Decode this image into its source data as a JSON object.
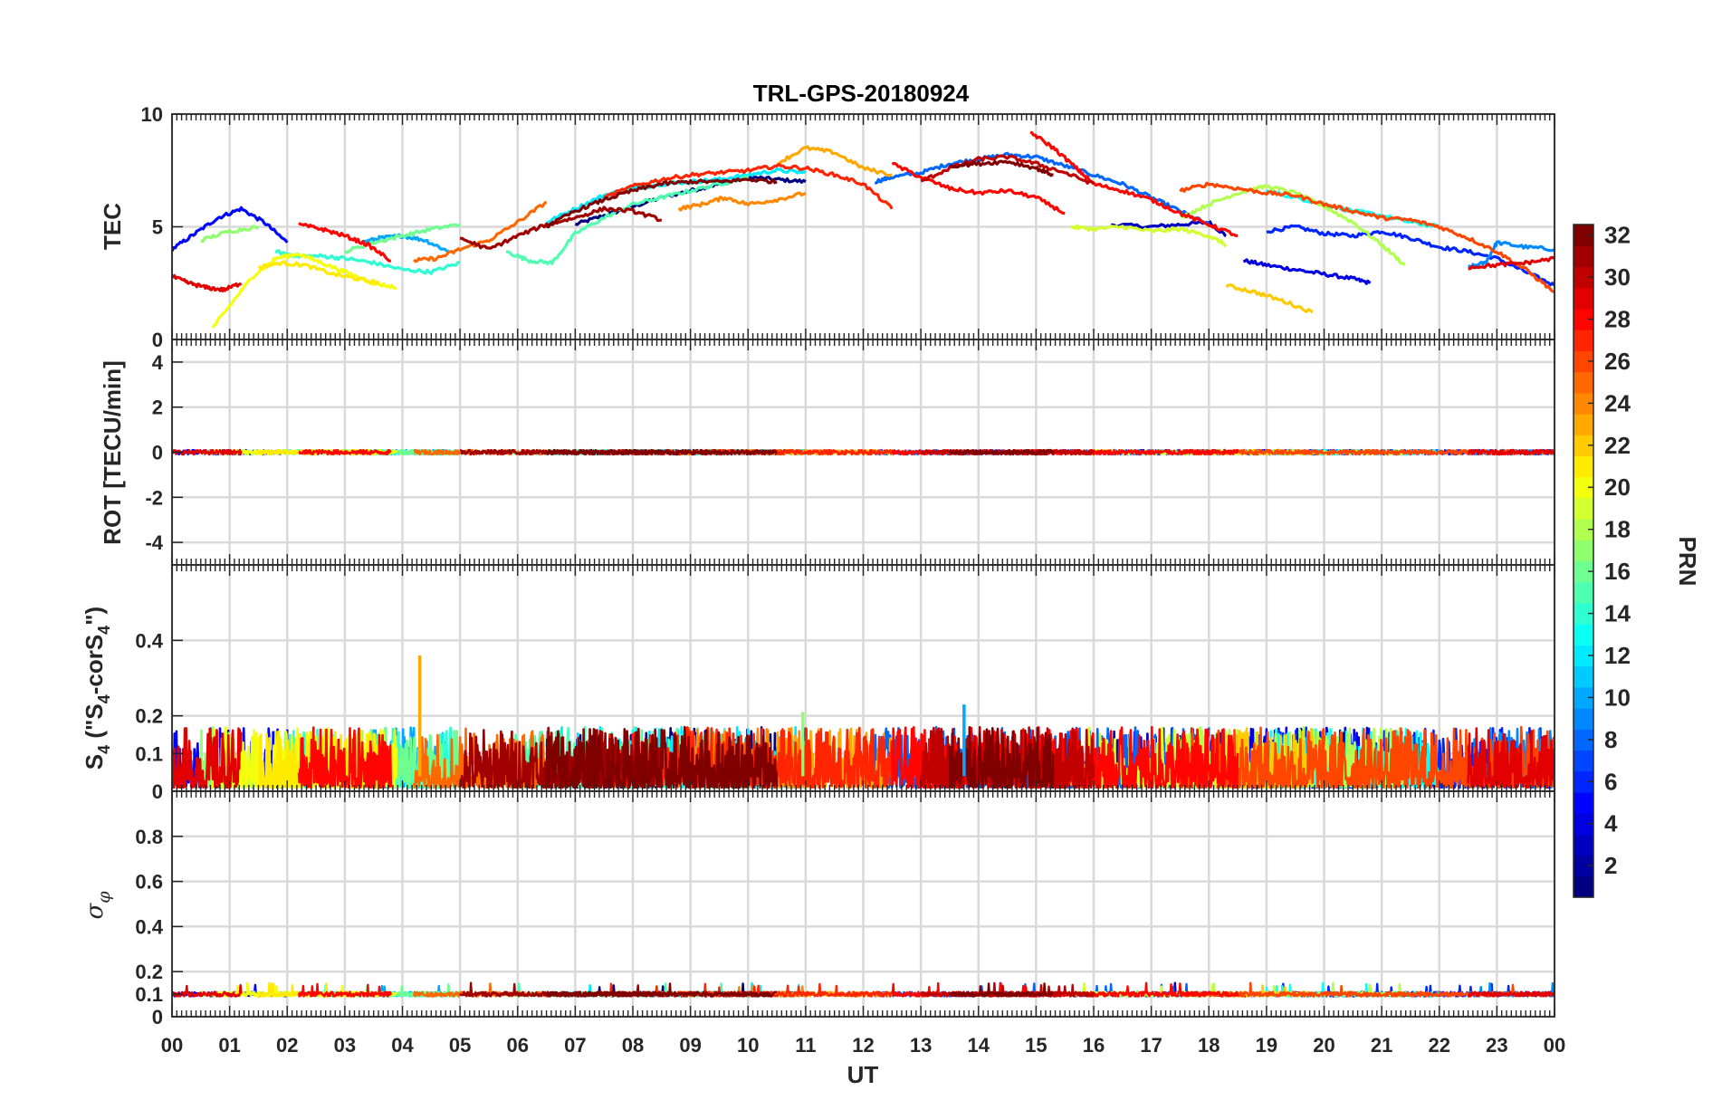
{
  "chart_data": {
    "type": "line",
    "title": "TRL-GPS-20180924",
    "xlabel": "UT",
    "x_range_hours": [
      0,
      24
    ],
    "x_tick_labels": [
      "00",
      "01",
      "02",
      "03",
      "04",
      "05",
      "06",
      "07",
      "08",
      "09",
      "10",
      "11",
      "12",
      "13",
      "14",
      "15",
      "16",
      "17",
      "18",
      "19",
      "20",
      "21",
      "22",
      "23",
      "00"
    ],
    "grid": true,
    "colorbar": {
      "label": "PRN",
      "colormap": "jet",
      "range": [
        1,
        32
      ],
      "tick_labels": [
        "2",
        "4",
        "6",
        "8",
        "10",
        "12",
        "14",
        "16",
        "18",
        "20",
        "22",
        "24",
        "26",
        "28",
        "30",
        "32"
      ]
    },
    "panels": [
      {
        "id": "tec",
        "ylabel": "TEC",
        "ylim": [
          0,
          10
        ],
        "y_tick_labels": [
          "0",
          "5",
          "10"
        ],
        "series": [
          {
            "prn": 1,
            "x": [
              7.0,
              7.5,
              8.0,
              8.5,
              9.0,
              9.5,
              10.0,
              10.5,
              11.0
            ],
            "y": [
              5.1,
              5.5,
              5.9,
              6.3,
              6.6,
              6.9,
              7.2,
              7.1,
              7.0
            ]
          },
          {
            "prn": 3,
            "x": [
              16.3,
              17.0,
              17.5,
              18.0,
              18.3
            ],
            "y": [
              5.1,
              5.0,
              5.1,
              5.2,
              4.6
            ]
          },
          {
            "prn": 4,
            "x": [
              18.6,
              19.0,
              19.5,
              20.0,
              20.5,
              20.8
            ],
            "y": [
              3.5,
              3.3,
              3.1,
              2.9,
              2.7,
              2.5
            ]
          },
          {
            "prn": 5,
            "x": [
              0.0,
              0.4,
              0.8,
              1.2,
              1.6,
              2.0
            ],
            "y": [
              4.0,
              4.7,
              5.4,
              5.8,
              5.2,
              4.3
            ]
          },
          {
            "prn": 6,
            "x": [
              19.0,
              19.5,
              20.0,
              20.5,
              21.0,
              21.5,
              22.0,
              22.5,
              23.0,
              23.5,
              24.0
            ],
            "y": [
              4.8,
              5.0,
              4.7,
              4.6,
              4.8,
              4.5,
              4.1,
              3.9,
              3.6,
              3.0,
              2.4
            ]
          },
          {
            "prn": 8,
            "x": [
              12.2,
              12.5,
              13.0,
              13.5,
              14.0,
              14.5,
              15.0,
              15.5,
              16.0,
              16.5,
              17.0,
              17.5,
              18.0
            ],
            "y": [
              7.0,
              7.2,
              7.4,
              7.8,
              8.0,
              8.2,
              8.1,
              7.7,
              7.3,
              6.9,
              6.3,
              5.7,
              5.1
            ]
          },
          {
            "prn": 9,
            "x": [
              22.5,
              22.8,
              23.0,
              23.5,
              24.0
            ],
            "y": [
              3.2,
              3.4,
              4.3,
              4.1,
              4.0
            ]
          },
          {
            "prn": 10,
            "x": [
              3.3,
              3.6,
              4.0,
              4.4,
              4.8
            ],
            "y": [
              4.3,
              4.5,
              4.6,
              4.4,
              3.9
            ]
          },
          {
            "prn": 12,
            "x": [
              6.5,
              7.0,
              7.5,
              8.0,
              8.5,
              9.0,
              9.5,
              10.0,
              10.5,
              11.0
            ],
            "y": [
              5.2,
              5.8,
              6.4,
              6.7,
              6.9,
              7.0,
              7.1,
              7.3,
              7.5,
              7.4
            ]
          },
          {
            "prn": 13,
            "x": [
              19.0,
              19.5,
              20.0,
              20.5,
              21.0,
              21.5,
              22.0
            ],
            "y": [
              6.6,
              6.3,
              6.0,
              5.7,
              5.5,
              5.2,
              5.0
            ]
          },
          {
            "prn": 14,
            "x": [
              1.8,
              2.2,
              2.6,
              3.0,
              3.5,
              4.0,
              4.5,
              5.0
            ],
            "y": [
              3.9,
              3.7,
              3.7,
              3.6,
              3.4,
              3.1,
              3.0,
              3.4
            ]
          },
          {
            "prn": 15,
            "x": [
              5.8,
              6.2,
              6.6,
              7.0,
              7.5,
              8.0,
              8.5,
              9.0,
              9.5,
              10.0
            ],
            "y": [
              3.9,
              3.5,
              3.4,
              4.7,
              5.4,
              6.0,
              6.3,
              6.6,
              6.9,
              7.2
            ]
          },
          {
            "prn": 16,
            "x": [
              3.0,
              3.5,
              4.0,
              4.5,
              5.0
            ],
            "y": [
              3.9,
              4.3,
              4.6,
              4.9,
              5.1
            ]
          },
          {
            "prn": 17,
            "x": [
              0.5,
              1.0,
              1.5
            ],
            "y": [
              4.4,
              4.8,
              5.0
            ]
          },
          {
            "prn": 18,
            "x": [
              17.5,
              18.0,
              18.5,
              19.0,
              19.5,
              20.0,
              20.5,
              21.0,
              21.4
            ],
            "y": [
              5.4,
              6.0,
              6.5,
              6.8,
              6.5,
              5.9,
              5.2,
              4.2,
              3.3
            ]
          },
          {
            "prn": 19,
            "x": [
              15.6,
              16.0,
              16.5,
              17.0,
              17.5,
              18.0,
              18.3
            ],
            "y": [
              5.0,
              4.9,
              5.0,
              4.8,
              4.9,
              4.6,
              4.2
            ]
          },
          {
            "prn": 20,
            "x": [
              0.7,
              1.0,
              1.4,
              1.8,
              2.2,
              2.6,
              3.0,
              3.5,
              3.9
            ],
            "y": [
              0.5,
              1.5,
              2.8,
              3.6,
              3.8,
              3.4,
              3.0,
              2.5,
              2.3
            ]
          },
          {
            "prn": 21,
            "x": [
              1.5,
              1.9,
              2.3,
              2.8,
              3.2,
              3.6
            ],
            "y": [
              3.2,
              3.4,
              3.3,
              2.9,
              2.7,
              2.5
            ]
          },
          {
            "prn": 22,
            "x": [
              18.3,
              18.8,
              19.3,
              19.8
            ],
            "y": [
              2.4,
              2.1,
              1.7,
              1.2
            ]
          },
          {
            "prn": 23,
            "x": [
              10.5,
              11.0,
              11.5,
              12.0,
              12.5
            ],
            "y": [
              7.8,
              8.5,
              8.3,
              7.6,
              7.3
            ]
          },
          {
            "prn": 24,
            "x": [
              8.8,
              9.2,
              9.6,
              10.0,
              10.5,
              11.0
            ],
            "y": [
              5.8,
              6.0,
              6.3,
              6.0,
              6.2,
              6.5
            ]
          },
          {
            "prn": 25,
            "x": [
              4.2,
              4.6,
              5.0,
              5.5,
              6.0,
              6.5
            ],
            "y": [
              3.5,
              3.6,
              4.0,
              4.4,
              5.2,
              6.1
            ]
          },
          {
            "prn": 26,
            "x": [
              17.5,
              18.0,
              18.5,
              19.0,
              19.5,
              20.0,
              20.5,
              21.0,
              21.5,
              22.0,
              22.5,
              23.0,
              23.5,
              24.0
            ],
            "y": [
              6.6,
              6.9,
              6.7,
              6.5,
              6.4,
              6.0,
              5.7,
              5.4,
              5.3,
              5.0,
              4.5,
              3.9,
              3.1,
              2.1
            ]
          },
          {
            "prn": 27,
            "x": [
              7.5,
              8.0,
              8.5,
              9.0,
              9.5,
              10.0,
              10.5,
              11.0,
              11.5,
              12.0,
              12.5
            ],
            "y": [
              6.3,
              6.8,
              7.1,
              7.3,
              7.4,
              7.5,
              7.7,
              7.6,
              7.3,
              6.9,
              5.8
            ]
          },
          {
            "prn": 28,
            "x": [
              14.9,
              15.3,
              15.7,
              16.0,
              16.5,
              17.0,
              17.5,
              18.0,
              18.5
            ],
            "y": [
              9.2,
              8.5,
              7.6,
              6.9,
              6.6,
              6.2,
              5.6,
              5.1,
              4.6
            ]
          },
          {
            "prn": 28,
            "x": [
              2.2,
              2.6,
              3.0,
              3.4,
              3.8
            ],
            "y": [
              5.1,
              4.9,
              4.6,
              4.2,
              3.5
            ]
          },
          {
            "prn": 28,
            "x": [
              12.5,
              13.0,
              13.5,
              14.0,
              14.5,
              15.0,
              15.5
            ],
            "y": [
              7.8,
              7.2,
              6.7,
              6.5,
              6.6,
              6.3,
              5.6
            ]
          },
          {
            "prn": 29,
            "x": [
              0.0,
              0.3,
              0.6,
              0.9,
              1.2
            ],
            "y": [
              2.8,
              2.5,
              2.3,
              2.2,
              2.5
            ]
          },
          {
            "prn": 29,
            "x": [
              22.5,
              23.0,
              23.5,
              24.0
            ],
            "y": [
              3.2,
              3.3,
              3.4,
              3.6
            ]
          },
          {
            "prn": 30,
            "x": [
              13.0,
              13.5,
              14.0,
              14.5,
              15.0,
              15.5,
              16.0
            ],
            "y": [
              7.0,
              7.6,
              8.0,
              8.1,
              7.8,
              7.4,
              6.9
            ]
          },
          {
            "prn": 31,
            "x": [
              5.0,
              5.5,
              6.0,
              6.5,
              7.0,
              7.5,
              8.0,
              8.5
            ],
            "y": [
              4.5,
              4.0,
              4.6,
              5.1,
              5.4,
              5.8,
              5.7,
              5.3
            ]
          },
          {
            "prn": 32,
            "x": [
              6.5,
              7.0,
              7.5,
              8.0,
              8.5,
              9.0,
              9.5,
              10.0,
              10.5
            ],
            "y": [
              5.0,
              5.7,
              6.2,
              6.6,
              6.9,
              7.0,
              7.0,
              7.1,
              7.0
            ]
          },
          {
            "prn": 32,
            "x": [
              13.5,
              14.0,
              14.5,
              15.0,
              15.3
            ],
            "y": [
              7.7,
              7.8,
              7.9,
              7.6,
              7.3
            ]
          }
        ]
      },
      {
        "id": "rot",
        "ylabel": "ROT [TECU/min]",
        "ylim": [
          -5,
          5
        ],
        "y_tick_labels": [
          "-4",
          "-2",
          "0",
          "2",
          "4"
        ],
        "note": "ROT values stay near 0 (|ROT| < 0.3) for all PRNs",
        "baseline": 0.0,
        "amplitude": 0.2
      },
      {
        "id": "s4",
        "ylabel": "S4 (\"S4-corS4\")",
        "ylim": [
          0,
          0.6
        ],
        "y_tick_labels": [
          "0",
          "0.1",
          "0.2",
          "0.4"
        ],
        "typical_range": [
          0.0,
          0.17
        ],
        "spikes": [
          {
            "prn": 23,
            "x": 4.3,
            "y": 0.36
          },
          {
            "prn": 10,
            "x": 13.75,
            "y": 0.23
          },
          {
            "prn": 17,
            "x": 10.95,
            "y": 0.21
          }
        ]
      },
      {
        "id": "sigma_phi",
        "ylabel": "σφ",
        "ylim": [
          0,
          1
        ],
        "y_tick_labels": [
          "0",
          "0.1",
          "0.2",
          "0.4",
          "0.6",
          "0.8"
        ],
        "typical_value": 0.1,
        "typical_range": [
          0.08,
          0.17
        ]
      }
    ]
  }
}
